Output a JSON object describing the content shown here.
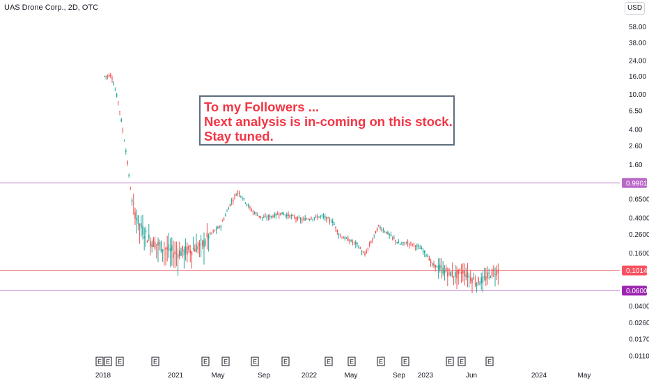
{
  "header": {
    "title": "UAS Drone Corp., 2D, OTC",
    "currency": "USD"
  },
  "annotation": {
    "line1": "To my Followers ...",
    "line2": "Next analysis is in-coming on this stock.",
    "line3": "Stay tuned."
  },
  "colors": {
    "up": "#26a69a",
    "down": "#ef5350",
    "purple_line": "#ce93d8",
    "red_line": "#ef9a9a",
    "text_red": "#f23645"
  },
  "chart_data": {
    "type": "candlestick",
    "y_scale": "log",
    "ylim": [
      0.0095,
      70
    ],
    "y_ticks": [
      58.0,
      38.0,
      24.0,
      16.0,
      10.0,
      6.5,
      4.0,
      2.6,
      1.6,
      0.65,
      0.4,
      0.26,
      0.16,
      0.04,
      0.026,
      0.017,
      0.011
    ],
    "y_tick_labels": [
      "58.00",
      "38.00",
      "24.00",
      "16.00",
      "10.00",
      "6.50",
      "4.00",
      "2.60",
      "1.60",
      "0.6500",
      "0.4000",
      "0.2600",
      "0.1600",
      "0.0400",
      "0.0260",
      "0.0170",
      "0.0110"
    ],
    "x_ticks": [
      "2018",
      "2021",
      "May",
      "Sep",
      "2022",
      "May",
      "Sep",
      "2023",
      "Jun",
      "2024",
      "May"
    ],
    "horizontal_lines": [
      {
        "value": 0.9901,
        "label": "0.9901",
        "color": "#ce93d8",
        "tag_color": "#ba68c8"
      },
      {
        "value": 0.1014,
        "label": "0.1014",
        "color": "#ef9a9a",
        "tag_color": "#f7525f"
      },
      {
        "value": 0.06,
        "label": "0.0600",
        "color": "#ce93d8",
        "tag_color": "#9c27b0"
      }
    ],
    "earnings_markers": [
      "E",
      "E",
      "E",
      "E",
      "E",
      "E",
      "E",
      "E",
      "E",
      "E",
      "E",
      "E",
      "E",
      "E",
      "E"
    ],
    "price_path": [
      [
        0.0,
        16.0
      ],
      [
        0.02,
        16.5
      ],
      [
        0.04,
        8.0
      ],
      [
        0.06,
        2.5
      ],
      [
        0.08,
        0.55
      ],
      [
        0.1,
        0.33
      ],
      [
        0.13,
        0.22
      ],
      [
        0.15,
        0.2
      ],
      [
        0.2,
        0.16
      ],
      [
        0.24,
        0.17
      ],
      [
        0.28,
        0.2
      ],
      [
        0.3,
        0.26
      ],
      [
        0.33,
        0.32
      ],
      [
        0.36,
        0.6
      ],
      [
        0.38,
        0.8
      ],
      [
        0.4,
        0.62
      ],
      [
        0.42,
        0.48
      ],
      [
        0.45,
        0.4
      ],
      [
        0.48,
        0.42
      ],
      [
        0.5,
        0.45
      ],
      [
        0.53,
        0.42
      ],
      [
        0.56,
        0.38
      ],
      [
        0.59,
        0.4
      ],
      [
        0.62,
        0.42
      ],
      [
        0.65,
        0.36
      ],
      [
        0.67,
        0.25
      ],
      [
        0.7,
        0.22
      ],
      [
        0.72,
        0.2
      ],
      [
        0.74,
        0.15
      ],
      [
        0.76,
        0.22
      ],
      [
        0.78,
        0.32
      ],
      [
        0.8,
        0.28
      ],
      [
        0.82,
        0.24
      ],
      [
        0.84,
        0.2
      ],
      [
        0.86,
        0.21
      ],
      [
        0.88,
        0.2
      ],
      [
        0.9,
        0.18
      ],
      [
        0.92,
        0.15
      ],
      [
        0.93,
        0.12
      ],
      [
        0.95,
        0.11
      ],
      [
        0.97,
        0.1
      ],
      [
        1.0,
        0.09
      ],
      [
        1.02,
        0.1
      ],
      [
        1.04,
        0.085
      ],
      [
        1.06,
        0.075
      ],
      [
        1.08,
        0.08
      ],
      [
        1.1,
        0.095
      ],
      [
        1.12,
        0.1014
      ]
    ]
  }
}
